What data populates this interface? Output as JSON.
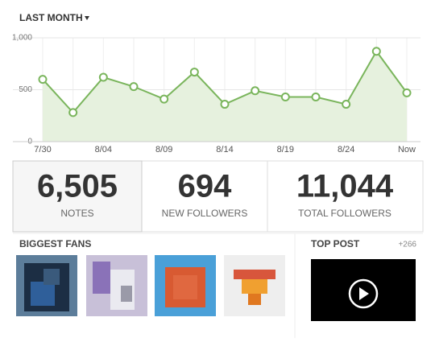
{
  "header": {
    "period": "LAST MONTH"
  },
  "chart_data": {
    "type": "line",
    "categories": [
      "7/30",
      null,
      "8/04",
      null,
      "8/09",
      null,
      "8/14",
      null,
      "8/19",
      null,
      "8/24",
      null,
      "Now"
    ],
    "series": [
      {
        "name": "Notes",
        "color": "#7ab55c",
        "values": [
          600,
          280,
          620,
          530,
          410,
          670,
          360,
          490,
          430,
          430,
          360,
          870,
          470
        ]
      }
    ],
    "ylim": [
      0,
      1000
    ],
    "yticks": [
      0,
      500,
      {
        "value": 1000,
        "label": "1,000"
      }
    ],
    "grid": true
  },
  "stats": [
    {
      "value": "6,505",
      "label": "NOTES"
    },
    {
      "value": "694",
      "label": "NEW FOLLOWERS"
    },
    {
      "value": "11,044",
      "label": "TOTAL FOLLOWERS"
    }
  ],
  "fans": {
    "title": "BIGGEST FANS"
  },
  "top_post": {
    "title": "TOP POST",
    "count": "+266"
  }
}
